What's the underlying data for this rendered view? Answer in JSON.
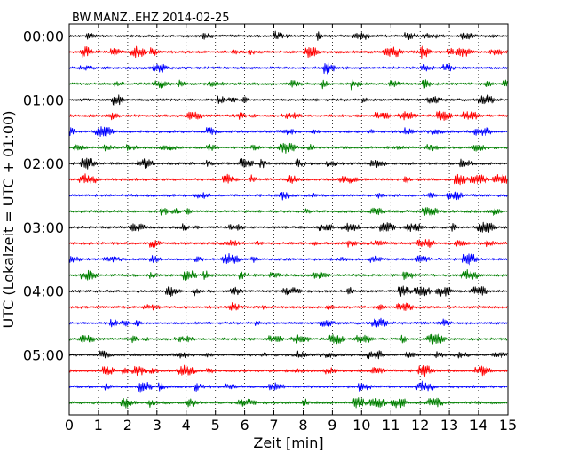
{
  "chart_data": {
    "type": "line",
    "subtype": "helicorder",
    "title": "BW.MANZ..EHZ 2014-02-25",
    "xlabel": "Zeit  [min]",
    "ylabel": "UTC (Lokalzeit = UTC + 01:00)",
    "xlim": [
      0,
      15
    ],
    "x_ticks": [
      "0",
      "1",
      "2",
      "3",
      "4",
      "5",
      "6",
      "7",
      "8",
      "9",
      "10",
      "11",
      "12",
      "13",
      "14",
      "15"
    ],
    "y_tick_labels": [
      "00:00",
      "01:00",
      "02:00",
      "03:00",
      "04:00",
      "05:00"
    ],
    "minutes_per_line": 15,
    "line_count": 24,
    "line_colors": [
      "#000000",
      "#ff0000",
      "#0000ff",
      "#007f00"
    ],
    "grid": "vertical dotted at each minute",
    "legend": "none"
  }
}
